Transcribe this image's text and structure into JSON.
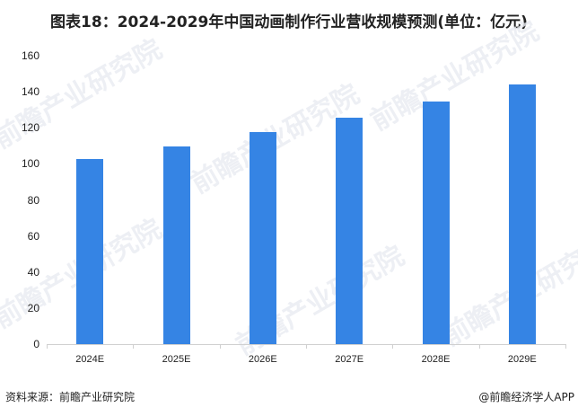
{
  "title": "图表18：2024-2029年中国动画制作行业营收规模预测(单位：亿元)",
  "chart_data": {
    "type": "bar",
    "title": "图表18：2024-2029年中国动画制作行业营收规模预测(单位：亿元)",
    "categories": [
      "2024E",
      "2025E",
      "2026E",
      "2027E",
      "2028E",
      "2029E"
    ],
    "values": [
      102.5,
      109.5,
      117.5,
      125.5,
      134.5,
      144
    ],
    "xlabel": "",
    "ylabel": "亿元",
    "ylim": [
      0,
      160
    ],
    "yticks": [
      0,
      20,
      40,
      60,
      80,
      100,
      120,
      140,
      160
    ],
    "grid": false,
    "legend": null,
    "bar_color": "#3584e4"
  },
  "footer": {
    "source": "资料来源：前瞻产业研究院",
    "brand": "@前瞻经济学人APP"
  },
  "watermark": {
    "text": "前瞻产业研究院"
  }
}
